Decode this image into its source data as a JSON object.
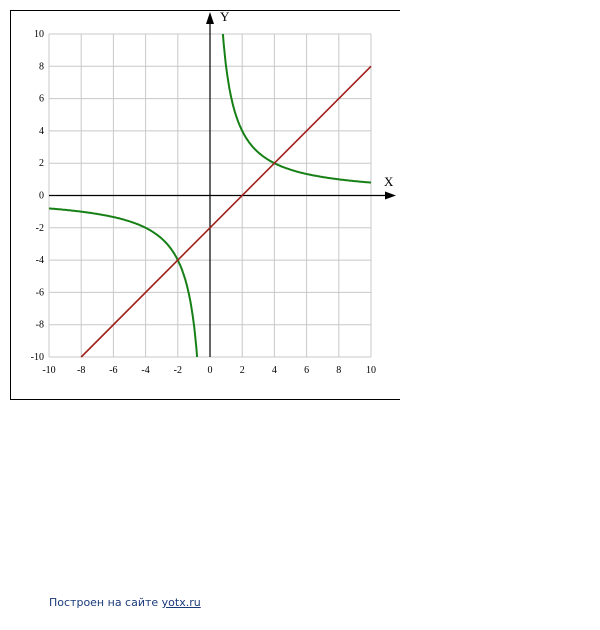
{
  "chart_data": {
    "type": "line",
    "xlabel": "X",
    "ylabel": "Y",
    "xlim": [
      -10,
      10
    ],
    "ylim": [
      -10,
      10
    ],
    "grid": true,
    "x_ticks": [
      "-10",
      "-8",
      "-6",
      "-4",
      "-2",
      "0",
      "2",
      "4",
      "6",
      "8",
      "10"
    ],
    "y_ticks": [
      "10",
      "8",
      "6",
      "4",
      "2",
      "0",
      "-2",
      "-4",
      "-6",
      "-8",
      "-10"
    ],
    "series": [
      {
        "function": "y = 8/x",
        "color": "#168016",
        "points": [
          [
            -10,
            -0.8
          ],
          [
            -8,
            -1
          ],
          [
            -4,
            -2
          ],
          [
            -2,
            -4
          ],
          [
            -1,
            -8
          ],
          [
            -0.8,
            -10
          ],
          [
            0.8,
            10
          ],
          [
            1,
            8
          ],
          [
            2,
            4
          ],
          [
            4,
            2
          ],
          [
            8,
            1
          ],
          [
            10,
            0.8
          ]
        ]
      },
      {
        "function": "y = x - 2",
        "color": "#a0201a",
        "points": [
          [
            -8,
            -10
          ],
          [
            10,
            8
          ]
        ]
      }
    ]
  },
  "footer": {
    "text": "Построен на сайте ",
    "link": "yotx.ru"
  }
}
